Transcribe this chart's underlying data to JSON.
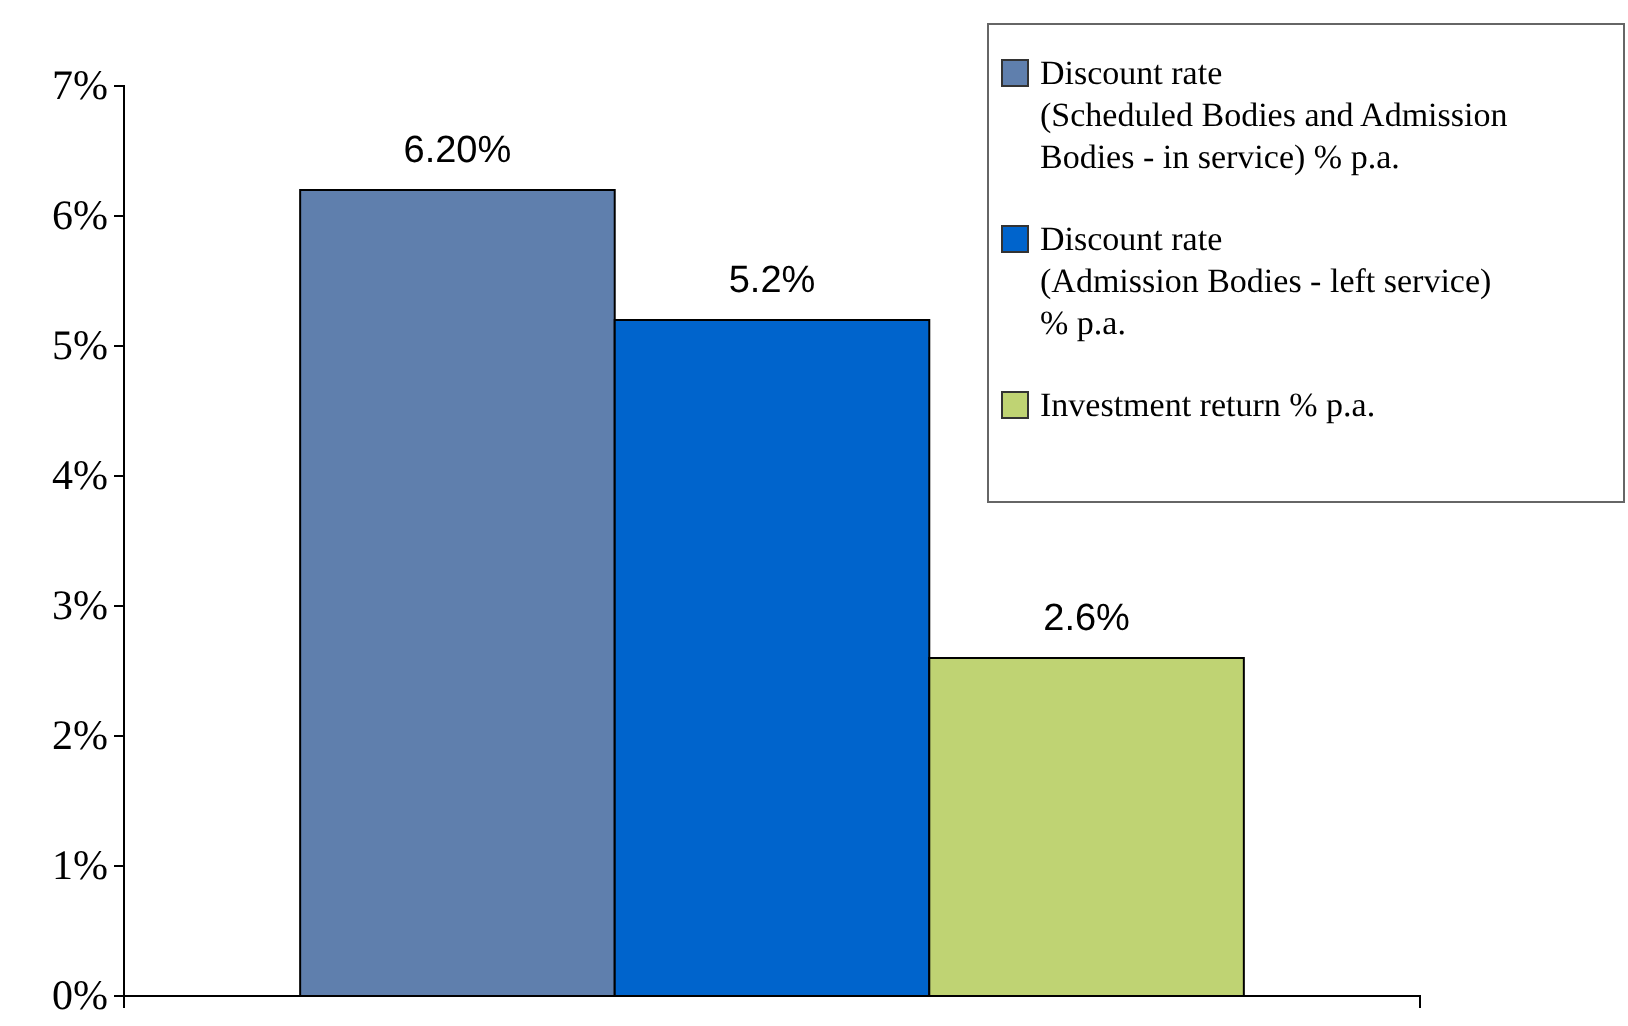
{
  "chart_data": {
    "type": "bar",
    "categories": [
      null
    ],
    "series": [
      {
        "name": "Discount rate\n(Scheduled Bodies and Admission\nBodies - in service) % p.a.",
        "color": "#5f7fad",
        "values": [
          6.2
        ],
        "value_labels": [
          "6.20%"
        ]
      },
      {
        "name": "Discount rate\n(Admission Bodies - left service)\n% p.a.",
        "color": "#0064cc",
        "values": [
          5.2
        ],
        "value_labels": [
          "5.2%"
        ]
      },
      {
        "name": "Investment return % p.a.",
        "color": "#bfd373",
        "values": [
          2.6
        ],
        "value_labels": [
          "2.6%"
        ]
      }
    ],
    "ylim": [
      0,
      7
    ],
    "yticks": [
      {
        "value": 0,
        "label": "0%"
      },
      {
        "value": 1,
        "label": "1%"
      },
      {
        "value": 2,
        "label": "2%"
      },
      {
        "value": 3,
        "label": "3%"
      },
      {
        "value": 4,
        "label": "4%"
      },
      {
        "value": 5,
        "label": "5%"
      },
      {
        "value": 6,
        "label": "6%"
      },
      {
        "value": 7,
        "label": "7%"
      }
    ],
    "grid": false,
    "legend": "top right"
  }
}
